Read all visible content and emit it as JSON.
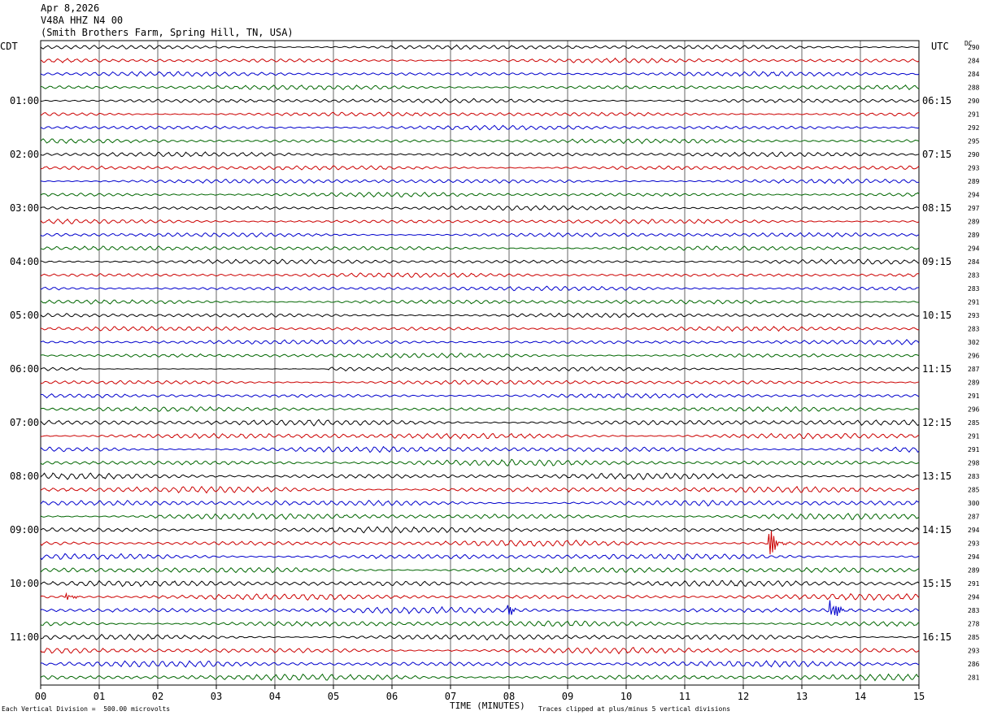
{
  "header": {
    "date": "Apr 8,2026",
    "station": "V48A HHZ N4 00",
    "location": "(Smith Brothers Farm, Spring Hill, TN, USA)"
  },
  "timezones": {
    "left": "CDT",
    "right": "UTC",
    "dc_label": "DC"
  },
  "footer": {
    "scale_note": "Each Vertical Division =  500.00 microvolts",
    "clip_note": "Traces clipped at plus/minus 5 vertical divisions",
    "x_axis_title": "TIME (MINUTES)"
  },
  "colors": [
    "#000000",
    "#cc0000",
    "#0000cc",
    "#006600"
  ],
  "chart_data": {
    "type": "line",
    "title": "",
    "xlabel": "TIME (MINUTES)",
    "xlim": [
      0,
      15
    ],
    "x_ticks": [
      "00",
      "01",
      "02",
      "03",
      "04",
      "05",
      "06",
      "07",
      "08",
      "09",
      "10",
      "11",
      "12",
      "13",
      "14",
      "15"
    ],
    "trace_count": 48,
    "minutes_per_trace": 15,
    "left_hour_labels": [
      "01:00",
      "02:00",
      "03:00",
      "04:00",
      "05:00",
      "06:00",
      "07:00",
      "08:00",
      "09:00",
      "10:00",
      "11:00"
    ],
    "right_hour_labels": [
      "06:15",
      "07:15",
      "08:15",
      "09:15",
      "10:15",
      "11:15",
      "12:15",
      "13:15",
      "14:15",
      "15:15",
      "16:15"
    ],
    "dc_offsets": [
      290,
      284,
      284,
      288,
      290,
      291,
      292,
      295,
      290,
      293,
      289,
      294,
      297,
      289,
      289,
      294,
      284,
      283,
      283,
      291,
      293,
      283,
      302,
      296,
      287,
      289,
      291,
      296,
      285,
      291,
      291,
      298,
      283,
      285,
      300,
      287,
      294,
      293,
      294,
      289,
      291,
      294,
      283,
      278,
      285,
      293,
      286,
      281
    ],
    "events": [
      {
        "trace": 37,
        "minute": 12.45,
        "amplitude": "large",
        "color": "#006600"
      },
      {
        "trace": 42,
        "minute": 13.5,
        "amplitude": "large",
        "color": "#0000cc"
      },
      {
        "trace": 41,
        "minute": 0.45,
        "amplitude": "small",
        "color": "#cc0000"
      },
      {
        "trace": 42,
        "minute": 8.0,
        "amplitude": "small",
        "color": "#0000cc"
      }
    ],
    "quiet_segment": {
      "trace": 24,
      "minute_start": 0.7,
      "minute_end": 4.9
    }
  }
}
